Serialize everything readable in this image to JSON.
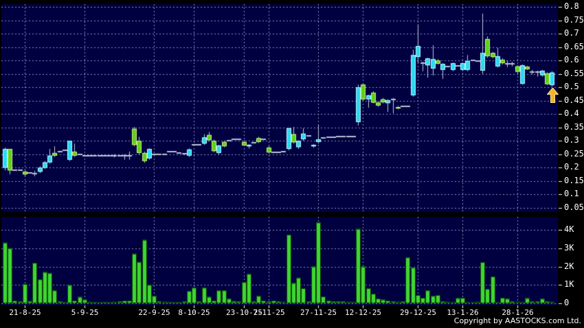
{
  "footer": {
    "copyright": "Copyright by AASTOCKS.com Ltd."
  },
  "colors": {
    "background": "#000000",
    "pane": "#000041",
    "grid": "#8e96b8",
    "axis_text": "#ffffff",
    "candle_up": "#2bd8f0",
    "candle_up_edge": "#bdf6ff",
    "candle_down": "#5fce1c",
    "candle_down_edge": "#c9f37f",
    "doji_dash": "#b9c2d4",
    "wick": "#c0c8d8",
    "volume_bar": "#3fd633",
    "volume_bar_edge": "#0b3f06",
    "arrow_fill": "#f6b226",
    "arrow_edge": "#ffdf8e"
  },
  "chart_data": {
    "type": "candlestick_volume",
    "title": "",
    "legend_position": "none",
    "grid": "dashed",
    "price_axis": {
      "side": "right",
      "range": [
        0.05,
        0.8
      ],
      "tick_values": [
        0.8,
        0.75,
        0.7,
        0.65,
        0.6,
        0.55,
        0.5,
        0.45,
        0.4,
        0.35,
        0.3,
        0.25,
        0.2,
        0.15,
        0.1,
        0.05
      ],
      "tick_labels": [
        "0.8",
        "0.75",
        "0.7",
        "0.65",
        "0.6",
        "0.55",
        "0.5",
        "0.45",
        "0.4",
        "0.35",
        "0.3",
        "0.25",
        "0.2",
        "0.15",
        "0.1",
        "0.05"
      ]
    },
    "volume_axis": {
      "side": "right",
      "range": [
        0,
        4400
      ],
      "tick_values": [
        4000,
        3000,
        2000,
        1000,
        0
      ],
      "tick_labels": [
        "4K",
        "3K",
        "2K",
        "1K",
        "0"
      ]
    },
    "date_ticks": [
      {
        "label": "21-8-25",
        "slot": 4
      },
      {
        "label": "5-9-25",
        "slot": 16
      },
      {
        "label": "22-9-25",
        "slot": 30
      },
      {
        "label": "8-10-25",
        "slot": 38
      },
      {
        "label": "23-10-25",
        "slot": 48
      },
      {
        "label": "7-11-25",
        "slot": 53
      },
      {
        "label": "27-11-25",
        "slot": 63
      },
      {
        "label": "12-12-25",
        "slot": 72
      },
      {
        "label": "29-12-25",
        "slot": 83
      },
      {
        "label": "13-1-26",
        "slot": 92
      },
      {
        "label": "28-1-26",
        "slot": 103
      }
    ],
    "annotation": {
      "shape": "up-arrow",
      "slot": 110,
      "price_top": 0.5
    },
    "candles_format": [
      "open",
      "high",
      "low",
      "close",
      "volume",
      "kind(u=up-cyan,d=down-green,n=doji-dash)"
    ],
    "candles": [
      [
        0.2,
        0.275,
        0.19,
        0.27,
        3300,
        "u"
      ],
      [
        0.27,
        0.27,
        0.175,
        0.19,
        3000,
        "d"
      ],
      [
        0.19,
        0.195,
        0.185,
        0.19,
        150,
        "n"
      ],
      [
        0.19,
        0.195,
        0.185,
        0.19,
        100,
        "n"
      ],
      [
        0.185,
        0.19,
        0.168,
        0.175,
        1050,
        "d"
      ],
      [
        0.18,
        0.185,
        0.175,
        0.18,
        120,
        "n"
      ],
      [
        0.178,
        0.188,
        0.168,
        0.178,
        2200,
        "n"
      ],
      [
        0.185,
        0.205,
        0.18,
        0.2,
        1300,
        "u"
      ],
      [
        0.2,
        0.225,
        0.195,
        0.22,
        1700,
        "u"
      ],
      [
        0.22,
        0.27,
        0.215,
        0.245,
        1650,
        "u"
      ],
      [
        0.255,
        0.28,
        0.24,
        0.245,
        700,
        "d"
      ],
      [
        0.26,
        0.265,
        0.255,
        0.26,
        100,
        "n"
      ],
      [
        0.265,
        0.27,
        0.26,
        0.265,
        60,
        "n"
      ],
      [
        0.23,
        0.3,
        0.225,
        0.3,
        1000,
        "u"
      ],
      [
        0.26,
        0.29,
        0.24,
        0.245,
        150,
        "d"
      ],
      [
        0.25,
        0.255,
        0.245,
        0.25,
        350,
        "n"
      ],
      [
        0.245,
        0.25,
        0.24,
        0.245,
        200,
        "n"
      ],
      [
        0.245,
        0.25,
        0.24,
        0.245,
        80,
        "n"
      ],
      [
        0.244,
        0.248,
        0.24,
        0.244,
        60,
        "n"
      ],
      [
        0.244,
        0.248,
        0.24,
        0.244,
        50,
        "n"
      ],
      [
        0.245,
        0.25,
        0.24,
        0.245,
        60,
        "n"
      ],
      [
        0.245,
        0.25,
        0.24,
        0.245,
        50,
        "n"
      ],
      [
        0.244,
        0.25,
        0.238,
        0.244,
        80,
        "n"
      ],
      [
        0.245,
        0.25,
        0.24,
        0.245,
        100,
        "n"
      ],
      [
        0.245,
        0.25,
        0.23,
        0.245,
        150,
        "n"
      ],
      [
        0.244,
        0.26,
        0.23,
        0.244,
        150,
        "n"
      ],
      [
        0.345,
        0.352,
        0.28,
        0.285,
        2700,
        "d"
      ],
      [
        0.3,
        0.315,
        0.25,
        0.255,
        2250,
        "d"
      ],
      [
        0.255,
        0.26,
        0.218,
        0.225,
        3450,
        "d"
      ],
      [
        0.235,
        0.272,
        0.23,
        0.27,
        1000,
        "u"
      ],
      [
        0.25,
        0.255,
        0.245,
        0.25,
        400,
        "n"
      ],
      [
        0.249,
        0.254,
        0.244,
        0.249,
        100,
        "n"
      ],
      [
        0.25,
        0.255,
        0.245,
        0.25,
        80,
        "n"
      ],
      [
        0.26,
        0.265,
        0.255,
        0.26,
        60,
        "n"
      ],
      [
        0.26,
        0.265,
        0.255,
        0.26,
        50,
        "n"
      ],
      [
        0.255,
        0.26,
        0.25,
        0.255,
        60,
        "n"
      ],
      [
        0.252,
        0.257,
        0.247,
        0.252,
        100,
        "n"
      ],
      [
        0.245,
        0.272,
        0.24,
        0.268,
        670,
        "u"
      ],
      [
        0.285,
        0.29,
        0.28,
        0.285,
        850,
        "n"
      ],
      [
        0.285,
        0.29,
        0.28,
        0.285,
        100,
        "n"
      ],
      [
        0.29,
        0.325,
        0.285,
        0.313,
        850,
        "u"
      ],
      [
        0.322,
        0.333,
        0.298,
        0.303,
        350,
        "d"
      ],
      [
        0.3,
        0.305,
        0.258,
        0.262,
        150,
        "d"
      ],
      [
        0.255,
        0.285,
        0.25,
        0.283,
        700,
        "u"
      ],
      [
        0.296,
        0.3,
        0.276,
        0.28,
        700,
        "d"
      ],
      [
        0.3,
        0.305,
        0.295,
        0.3,
        250,
        "n"
      ],
      [
        0.305,
        0.31,
        0.3,
        0.305,
        120,
        "n"
      ],
      [
        0.305,
        0.31,
        0.3,
        0.305,
        100,
        "n"
      ],
      [
        0.296,
        0.302,
        0.28,
        0.283,
        1150,
        "d"
      ],
      [
        0.283,
        0.288,
        0.272,
        0.285,
        1600,
        "u"
      ],
      [
        0.293,
        0.298,
        0.288,
        0.293,
        100,
        "n"
      ],
      [
        0.31,
        0.315,
        0.292,
        0.296,
        400,
        "d"
      ],
      [
        0.305,
        0.31,
        0.3,
        0.305,
        150,
        "n"
      ],
      [
        0.275,
        0.28,
        0.253,
        0.257,
        100,
        "d"
      ],
      [
        0.257,
        0.262,
        0.252,
        0.257,
        150,
        "n"
      ],
      [
        0.258,
        0.263,
        0.253,
        0.258,
        100,
        "n"
      ],
      [
        0.26,
        0.265,
        0.255,
        0.26,
        80,
        "n"
      ],
      [
        0.27,
        0.35,
        0.265,
        0.347,
        3740,
        "u"
      ],
      [
        0.325,
        0.352,
        0.29,
        0.295,
        1100,
        "d"
      ],
      [
        0.277,
        0.302,
        0.27,
        0.3,
        1390,
        "u"
      ],
      [
        0.306,
        0.347,
        0.3,
        0.327,
        820,
        "u"
      ],
      [
        0.32,
        0.325,
        0.315,
        0.32,
        100,
        "n"
      ],
      [
        0.28,
        0.287,
        0.275,
        0.285,
        2000,
        "u"
      ],
      [
        0.296,
        0.36,
        0.29,
        0.306,
        4400,
        "u"
      ],
      [
        0.31,
        0.315,
        0.305,
        0.31,
        370,
        "n"
      ],
      [
        0.313,
        0.318,
        0.308,
        0.313,
        150,
        "n"
      ],
      [
        0.313,
        0.318,
        0.308,
        0.313,
        100,
        "n"
      ],
      [
        0.315,
        0.32,
        0.31,
        0.315,
        100,
        "n"
      ],
      [
        0.315,
        0.32,
        0.31,
        0.315,
        100,
        "n"
      ],
      [
        0.316,
        0.321,
        0.311,
        0.316,
        80,
        "n"
      ],
      [
        0.315,
        0.32,
        0.31,
        0.315,
        60,
        "n"
      ],
      [
        0.37,
        0.51,
        0.357,
        0.5,
        4050,
        "u"
      ],
      [
        0.51,
        0.515,
        0.45,
        0.455,
        2000,
        "d"
      ],
      [
        0.455,
        0.472,
        0.424,
        0.47,
        820,
        "u"
      ],
      [
        0.48,
        0.485,
        0.44,
        0.443,
        520,
        "d"
      ],
      [
        0.443,
        0.448,
        0.428,
        0.432,
        260,
        "d"
      ],
      [
        0.455,
        0.46,
        0.44,
        0.444,
        200,
        "d"
      ],
      [
        0.441,
        0.455,
        0.408,
        0.452,
        150,
        "u"
      ],
      [
        0.455,
        0.46,
        0.403,
        0.455,
        100,
        "n"
      ],
      [
        0.426,
        0.43,
        0.418,
        0.421,
        80,
        "d"
      ],
      [
        0.43,
        0.435,
        0.425,
        0.43,
        100,
        "n"
      ],
      [
        0.43,
        0.435,
        0.425,
        0.43,
        2500,
        "n"
      ],
      [
        0.47,
        0.64,
        0.465,
        0.62,
        1950,
        "u"
      ],
      [
        0.613,
        0.735,
        0.59,
        0.654,
        450,
        "u"
      ],
      [
        0.59,
        0.595,
        0.56,
        0.59,
        300,
        "n"
      ],
      [
        0.582,
        0.61,
        0.536,
        0.608,
        700,
        "u"
      ],
      [
        0.57,
        0.657,
        0.544,
        0.605,
        400,
        "u"
      ],
      [
        0.6,
        0.605,
        0.585,
        0.588,
        450,
        "d"
      ],
      [
        0.565,
        0.59,
        0.531,
        0.587,
        100,
        "u"
      ],
      [
        0.578,
        0.583,
        0.573,
        0.578,
        80,
        "n"
      ],
      [
        0.565,
        0.592,
        0.56,
        0.59,
        50,
        "u"
      ],
      [
        0.58,
        0.585,
        0.575,
        0.58,
        280,
        "n"
      ],
      [
        0.565,
        0.592,
        0.56,
        0.59,
        300,
        "u"
      ],
      [
        0.565,
        0.62,
        0.56,
        0.598,
        50,
        "u"
      ],
      [
        0.6,
        0.605,
        0.595,
        0.6,
        50,
        "n"
      ],
      [
        0.598,
        0.603,
        0.593,
        0.598,
        80,
        "n"
      ],
      [
        0.562,
        0.775,
        0.55,
        0.628,
        2240,
        "u"
      ],
      [
        0.68,
        0.69,
        0.61,
        0.616,
        780,
        "d"
      ],
      [
        0.628,
        0.632,
        0.608,
        0.613,
        1460,
        "d"
      ],
      [
        0.578,
        0.647,
        0.574,
        0.616,
        50,
        "u"
      ],
      [
        0.603,
        0.608,
        0.585,
        0.59,
        300,
        "d"
      ],
      [
        0.587,
        0.6,
        0.575,
        0.587,
        250,
        "n"
      ],
      [
        0.587,
        0.595,
        0.578,
        0.587,
        100,
        "n"
      ],
      [
        0.578,
        0.582,
        0.552,
        0.558,
        80,
        "d"
      ],
      [
        0.513,
        0.585,
        0.51,
        0.582,
        50,
        "u"
      ],
      [
        0.577,
        0.58,
        0.565,
        0.567,
        280,
        "d"
      ],
      [
        0.557,
        0.565,
        0.548,
        0.557,
        100,
        "n"
      ],
      [
        0.557,
        0.562,
        0.54,
        0.557,
        100,
        "n"
      ],
      [
        0.545,
        0.565,
        0.54,
        0.562,
        250,
        "u"
      ],
      [
        0.552,
        0.556,
        0.508,
        0.512,
        100,
        "d"
      ],
      [
        0.508,
        0.56,
        0.503,
        0.555,
        80,
        "u"
      ]
    ]
  }
}
